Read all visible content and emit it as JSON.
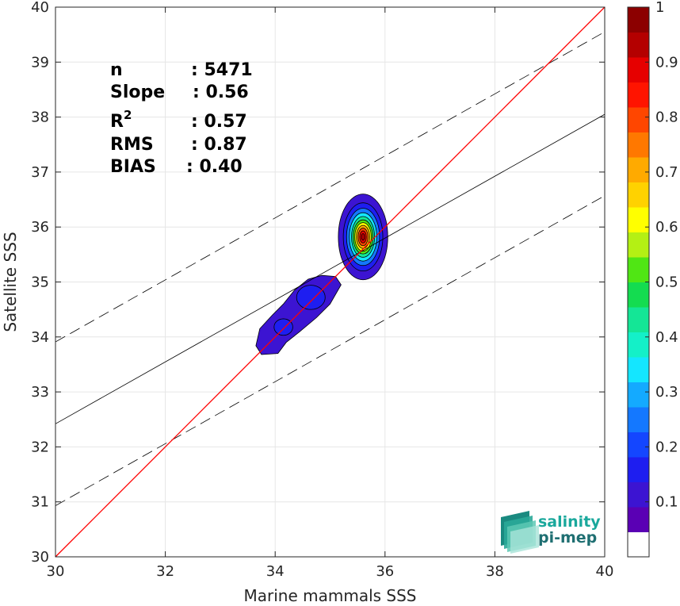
{
  "chart_data": {
    "type": "contour-scatter",
    "xlabel": "Marine mammals SSS",
    "ylabel": "Satellite SSS",
    "xlim": [
      30,
      40
    ],
    "ylim": [
      30,
      40
    ],
    "xticks": [
      30,
      32,
      34,
      36,
      38,
      40
    ],
    "yticks": [
      30,
      31,
      32,
      33,
      34,
      35,
      36,
      37,
      38,
      39,
      40
    ],
    "grid": true,
    "stats": [
      {
        "label": "n",
        "value": ": 5471"
      },
      {
        "label": "Slope",
        "value": ": 0.56"
      },
      {
        "label": "R",
        "sup": "2",
        "value": ": 0.57"
      },
      {
        "label": "RMS",
        "value": ": 0.87"
      },
      {
        "label": "BIAS",
        "value": ": 0.40"
      }
    ],
    "one_to_one_line": {
      "color": "#ff0000",
      "points": [
        [
          30,
          30
        ],
        [
          40,
          40
        ]
      ]
    },
    "fit_line": {
      "color": "#000000",
      "points": [
        [
          30,
          32.42
        ],
        [
          40,
          38.05
        ]
      ]
    },
    "fit_band_upper": {
      "color": "#000000",
      "dash": true,
      "points": [
        [
          30,
          33.91
        ],
        [
          40,
          39.55
        ]
      ]
    },
    "fit_band_lower": {
      "color": "#000000",
      "dash": true,
      "points": [
        [
          30,
          30.93
        ],
        [
          40,
          36.57
        ]
      ]
    },
    "density_contours": [
      {
        "name": "main_cluster",
        "center": [
          35.6,
          35.82
        ],
        "levels": [
          {
            "level": 0.05,
            "rx": 0.45,
            "ry": 0.78
          },
          {
            "level": 0.1,
            "rx": 0.36,
            "ry": 0.62
          },
          {
            "level": 0.2,
            "rx": 0.3,
            "ry": 0.52
          },
          {
            "level": 0.3,
            "rx": 0.25,
            "ry": 0.44
          },
          {
            "level": 0.4,
            "rx": 0.21,
            "ry": 0.37
          },
          {
            "level": 0.5,
            "rx": 0.18,
            "ry": 0.31
          },
          {
            "level": 0.6,
            "rx": 0.15,
            "ry": 0.26
          },
          {
            "level": 0.7,
            "rx": 0.12,
            "ry": 0.21
          },
          {
            "level": 0.8,
            "rx": 0.09,
            "ry": 0.16
          },
          {
            "level": 0.9,
            "rx": 0.06,
            "ry": 0.11
          },
          {
            "level": 0.95,
            "rx": 0.03,
            "ry": 0.06
          }
        ]
      },
      {
        "name": "secondary_cluster",
        "polygon_level": 0.05,
        "polygon": [
          [
            33.65,
            33.84
          ],
          [
            33.72,
            34.15
          ],
          [
            33.95,
            34.4
          ],
          [
            34.15,
            34.6
          ],
          [
            34.35,
            34.85
          ],
          [
            34.6,
            35.05
          ],
          [
            34.85,
            35.12
          ],
          [
            35.1,
            35.1
          ],
          [
            35.2,
            34.95
          ],
          [
            35.0,
            34.6
          ],
          [
            34.75,
            34.35
          ],
          [
            34.45,
            34.1
          ],
          [
            34.2,
            33.9
          ],
          [
            34.05,
            33.7
          ],
          [
            33.75,
            33.68
          ]
        ],
        "inner": [
          {
            "level": 0.1,
            "center": [
              34.65,
              34.72
            ],
            "rx": 0.26,
            "ry": 0.22
          },
          {
            "level": 0.1,
            "center": [
              34.15,
              34.18
            ],
            "rx": 0.17,
            "ry": 0.15
          }
        ]
      }
    ],
    "colorbar": {
      "ticks": [
        0.1,
        0.2,
        0.3,
        0.4,
        0.5,
        0.6,
        0.7,
        0.8,
        0.9,
        1
      ],
      "tick_labels": [
        "0.1",
        "0.2",
        "0.3",
        "0.4",
        "0.5",
        "0.6",
        "0.7",
        "0.8",
        "0.9",
        "1"
      ],
      "colors": [
        "#ffffff",
        "#5a00b4",
        "#3c14d2",
        "#1e1ef0",
        "#1446ff",
        "#1478ff",
        "#14aaff",
        "#14e6ff",
        "#14f0c8",
        "#14e696",
        "#14dc50",
        "#50e614",
        "#b4f014",
        "#ffff00",
        "#ffd200",
        "#ffaa00",
        "#ff7800",
        "#ff4600",
        "#ff1400",
        "#e60000",
        "#b40000",
        "#8c0000"
      ]
    }
  },
  "logo": {
    "line1": "salinity",
    "line2": "pi-mep"
  }
}
